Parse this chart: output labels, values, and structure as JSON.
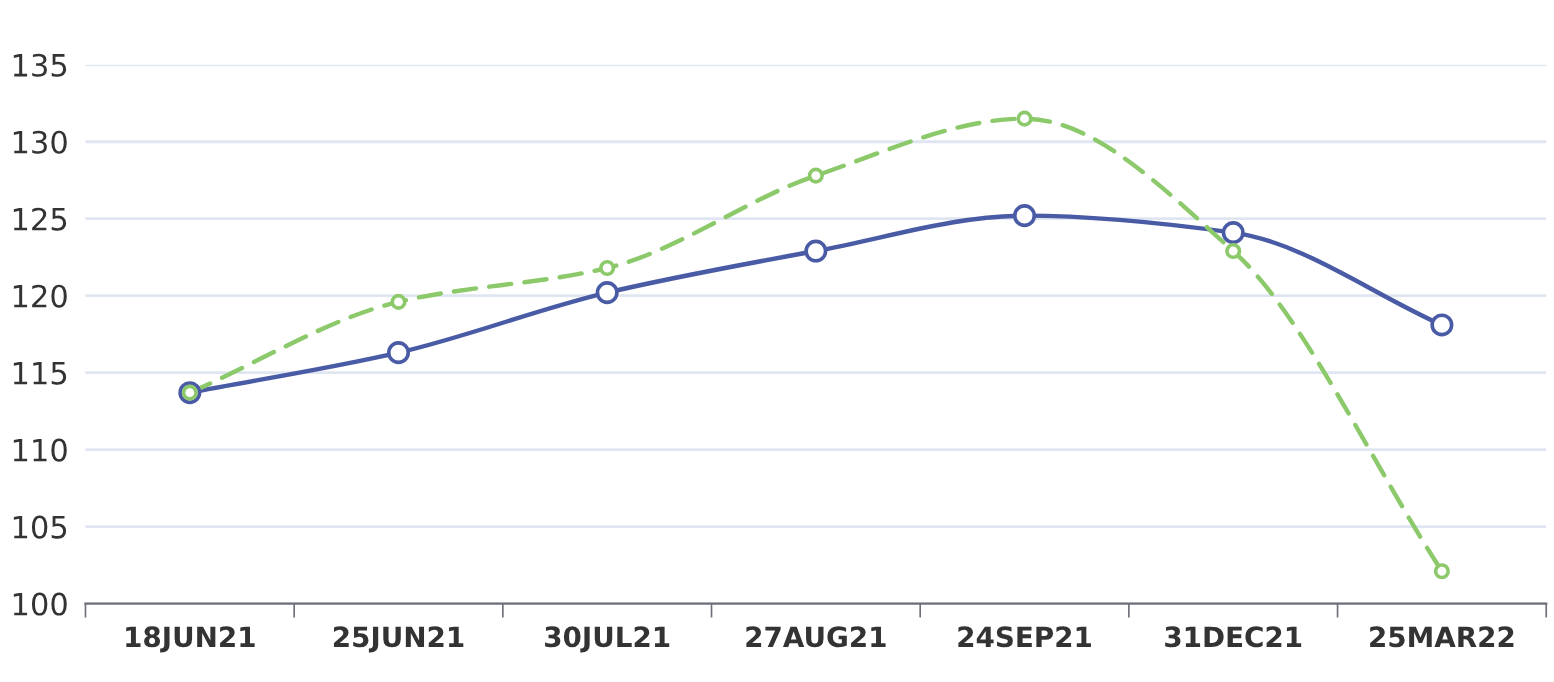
{
  "chart_data": {
    "type": "line",
    "categories": [
      "18JUN21",
      "25JUN21",
      "30JUL21",
      "27AUG21",
      "24SEP21",
      "31DEC21",
      "25MAR22"
    ],
    "series": [
      {
        "color": "#4a5ba6",
        "line_style": "solid",
        "values": [
          113.7,
          116.3,
          120.2,
          122.9,
          125.2,
          124.1,
          118.1
        ]
      },
      {
        "color": "#8cc96a",
        "line_style": "dashed",
        "values": [
          113.7,
          119.6,
          121.8,
          127.8,
          131.5,
          122.9,
          102.1
        ]
      }
    ],
    "ylim": [
      100,
      135
    ],
    "yticks": [
      100,
      105,
      110,
      115,
      120,
      125,
      130,
      135
    ],
    "grid": "y",
    "marker": "circle",
    "legend": false
  }
}
